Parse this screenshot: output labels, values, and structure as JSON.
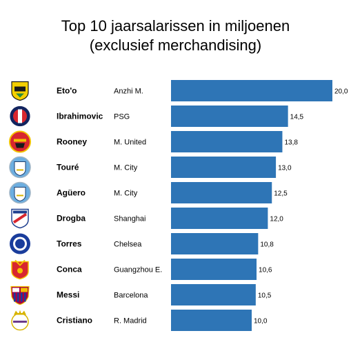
{
  "chart_data": {
    "type": "bar",
    "orientation": "horizontal",
    "title": "Top 10 jaarsalarissen in miljoenen",
    "subtitle": "(exclusief merchandising)",
    "bar_color": "#2e75b6",
    "categories": [
      "Eto'o",
      "Ibrahimovic",
      "Rooney",
      "Touré",
      "Agüero",
      "Drogba",
      "Torres",
      "Conca",
      "Messi",
      "Cristiano"
    ],
    "clubs": [
      "Anzhi M.",
      "PSG",
      "M. United",
      "M. City",
      "M. City",
      "Shanghai",
      "Chelsea",
      "Guangzhou E.",
      "Barcelona",
      "R. Madrid"
    ],
    "club_logos": [
      "anzhi-crest",
      "psg-crest",
      "man-united-crest",
      "man-city-crest",
      "man-city-crest",
      "shanghai-shenhua-crest",
      "chelsea-crest",
      "guangzhou-evergrande-crest",
      "barcelona-crest",
      "real-madrid-crest"
    ],
    "values": [
      20.0,
      14.5,
      13.8,
      13.0,
      12.5,
      12.0,
      10.8,
      10.6,
      10.5,
      10.0
    ],
    "value_labels": [
      "20,0",
      "14,5",
      "13,8",
      "13,0",
      "12,5",
      "12,0",
      "10,8",
      "10,6",
      "10,5",
      "10,0"
    ],
    "xlim": [
      0,
      20
    ],
    "grid": false,
    "legend": "none"
  }
}
